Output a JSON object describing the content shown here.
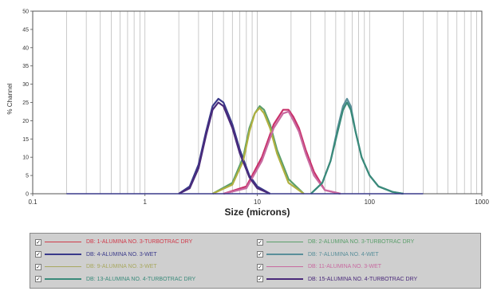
{
  "chart_data": {
    "type": "line",
    "xlabel": "Size (microns)",
    "ylabel": "% Channel",
    "x_scale": "log",
    "xlim": [
      0.1,
      1000
    ],
    "ylim": [
      0,
      50
    ],
    "x_ticks": [
      "0.1",
      "1",
      "10",
      "100",
      "1000"
    ],
    "y_ticks": [
      "0",
      "5",
      "10",
      "15",
      "20",
      "25",
      "30",
      "35",
      "40",
      "45",
      "50"
    ],
    "grid": "vertical",
    "series": [
      {
        "name": "DB: 1-ALUMINA NO. 3-TURBOTRAC DRY",
        "color": "#c8306a",
        "x": [
          5,
          8,
          11,
          14,
          17,
          19,
          21,
          23.5,
          27,
          32,
          40,
          55
        ],
        "y": [
          0,
          2,
          10,
          19,
          23,
          23,
          21,
          18,
          12,
          6,
          1,
          0
        ]
      },
      {
        "name": "DB: 2-ALUMINA NO. 3-TURBOTRAC DRY",
        "color": "#5a9e6a",
        "x": [
          4,
          6,
          7.5,
          8.5,
          9.5,
          10.5,
          11.5,
          13,
          15,
          19,
          26
        ],
        "y": [
          0,
          3,
          10,
          18,
          22,
          24,
          23,
          19,
          12,
          4,
          0
        ]
      },
      {
        "name": "DB: 4-ALUMINA NO. 3-WET",
        "color": "#3a3a8a",
        "x": [
          2,
          2.5,
          3,
          3.5,
          4,
          4.5,
          5,
          6,
          7,
          8.5,
          10,
          13
        ],
        "y": [
          0,
          2,
          8,
          17,
          24,
          26,
          25,
          19,
          12,
          5,
          2,
          0
        ]
      },
      {
        "name": "DB: 7-ALUMINA NO. 4-WET",
        "color": "#5a8f9a",
        "x": [
          30,
          38,
          45,
          52,
          58,
          63,
          68,
          75,
          85,
          100,
          120,
          160,
          200
        ],
        "y": [
          0,
          3,
          9,
          18,
          24,
          26,
          24,
          17,
          10,
          5,
          2,
          0.5,
          0
        ]
      },
      {
        "name": "DB: 9-ALUMINA NO. 3-WET",
        "color": "#b0b040",
        "x": [
          4,
          6,
          7.5,
          8.5,
          9.5,
          10.5,
          11.5,
          13,
          15,
          19,
          26
        ],
        "y": [
          0,
          2.5,
          9,
          17,
          22,
          23.5,
          22,
          18,
          11,
          3,
          0
        ]
      },
      {
        "name": "DB: 11-ALUMINA NO. 3-WET",
        "color": "#c86aa0",
        "x": [
          5,
          8,
          11,
          14,
          17,
          19,
          21,
          23.5,
          27,
          32,
          40,
          55
        ],
        "y": [
          0,
          1.5,
          9,
          18,
          22,
          22.5,
          20,
          17,
          11,
          5,
          1,
          0
        ]
      },
      {
        "name": "DB: 13-ALUMINA NO. 4-TURBOTRAC DRY",
        "color": "#3a8a7a",
        "x": [
          30,
          38,
          45,
          52,
          58,
          63,
          68,
          75,
          85,
          100,
          120,
          160,
          200
        ],
        "y": [
          0,
          3,
          9,
          17,
          23,
          25,
          23,
          17,
          10,
          5,
          2,
          0.5,
          0
        ]
      },
      {
        "name": "DB: 15-ALUMINA NO. 4-TURBOTRAC DRY",
        "color": "#4a2a7a",
        "x": [
          2,
          2.5,
          3,
          3.5,
          4,
          4.5,
          5,
          6,
          7,
          8.5,
          10,
          13
        ],
        "y": [
          0,
          1.5,
          7,
          16,
          23,
          25,
          24,
          18,
          11,
          4.5,
          1.5,
          0
        ]
      }
    ]
  },
  "legend": {
    "items": [
      {
        "label": "DB: 1-ALUMINA NO. 3-TURBOTRAC DRY",
        "color": "#d03a4a",
        "checked": "✓"
      },
      {
        "label": "DB: 2-ALUMINA NO. 3-TURBOTRAC DRY",
        "color": "#5a9e6a",
        "checked": "✓"
      },
      {
        "label": "DB: 4-ALUMINA NO. 3-WET",
        "color": "#3a3a8a",
        "checked": "✓"
      },
      {
        "label": "DB: 7-ALUMINA NO. 4-WET",
        "color": "#5a8f9a",
        "checked": "✓"
      },
      {
        "label": "DB: 9-ALUMINA NO. 3-WET",
        "color": "#a8a860",
        "checked": "✓"
      },
      {
        "label": "DB: 11-ALUMINA NO. 3-WET",
        "color": "#c86aa0",
        "checked": "✓"
      },
      {
        "label": "DB: 13-ALUMINA NO. 4-TURBOTRAC DRY",
        "color": "#3a8a7a",
        "checked": "✓"
      },
      {
        "label": "DB: 15-ALUMINA NO. 4-TURBOTRAC DRY",
        "color": "#4a2a7a",
        "checked": "✓"
      }
    ]
  }
}
